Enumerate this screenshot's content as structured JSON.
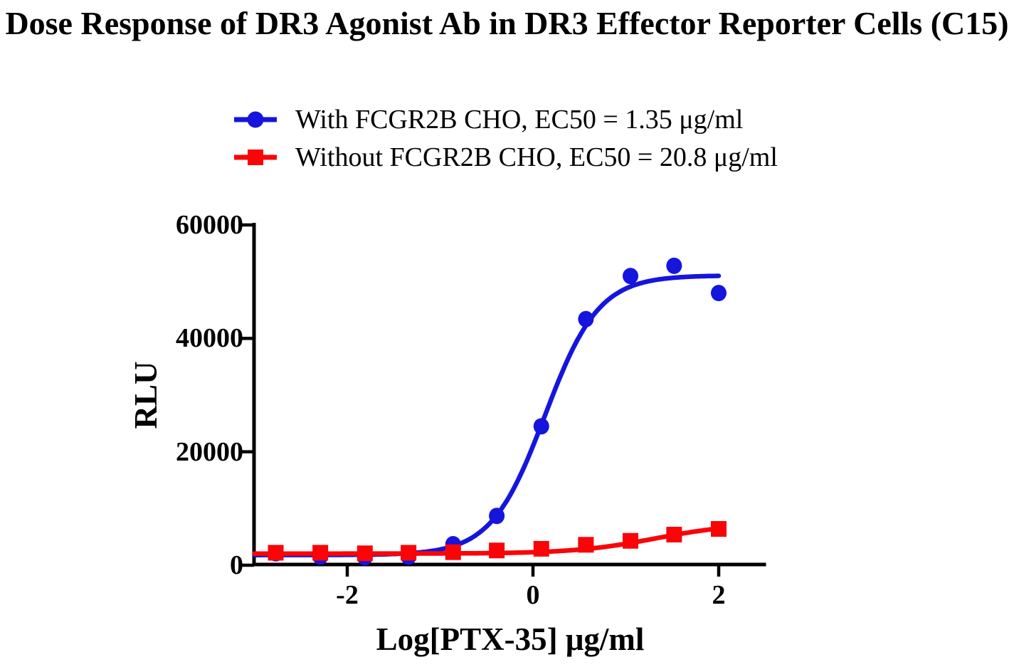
{
  "chart_data": {
    "type": "scatter",
    "title": "Dose Response of DR3 Agonist Ab in DR3 Effector Reporter Cells (C15)",
    "xlabel": "Log[PTX-35] μg/ml",
    "ylabel": "RLU",
    "xlim": [
      -3.0,
      2.51
    ],
    "ylim": [
      0,
      60000
    ],
    "x_ticks": [
      -2,
      0,
      2
    ],
    "y_ticks": [
      0,
      20000,
      40000,
      60000
    ],
    "grid": false,
    "legend_position": "top-center",
    "axis_color": "#000000",
    "x": [
      -2.77,
      -2.29,
      -1.81,
      -1.34,
      -0.86,
      -0.39,
      0.09,
      0.57,
      1.05,
      1.52,
      2.0
    ],
    "series": [
      {
        "name": "With FCGR2B CHO, EC50 = 1.35 μg/ml",
        "color": "#1515DE",
        "marker": "circle",
        "values": [
          2100,
          1500,
          1400,
          1500,
          3700,
          8700,
          24500,
          43400,
          51000,
          52800,
          48000
        ],
        "ec50_ug_ml": 1.35,
        "fit_curve": {
          "model": "logistic4",
          "bottom": 1800,
          "top": 51100,
          "log_ec50": 0.13,
          "hill": 1.5,
          "x_range": [
            -3.0,
            2.0
          ]
        }
      },
      {
        "name": "Without FCGR2B CHO, EC50 = 20.8 μg/ml",
        "color": "#FA0408",
        "marker": "square",
        "values": [
          2200,
          2200,
          2100,
          2200,
          2300,
          2600,
          2900,
          3600,
          4300,
          5400,
          6400
        ],
        "ec50_ug_ml": 20.8,
        "fit_curve": {
          "model": "logistic4",
          "bottom": 2050,
          "top": 7400,
          "log_ec50": 1.318,
          "hill": 1.0,
          "x_range": [
            -3.0,
            2.0
          ]
        }
      }
    ]
  }
}
